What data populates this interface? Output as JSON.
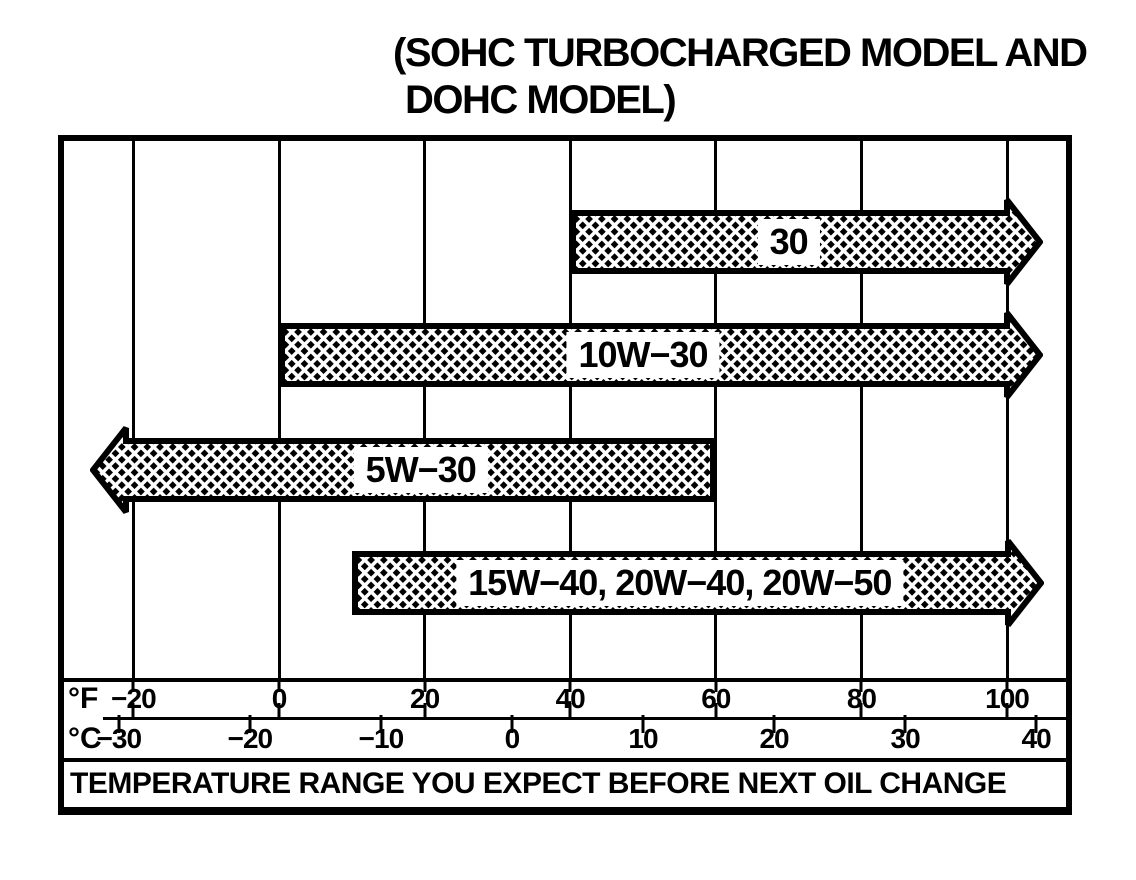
{
  "title": {
    "line1": "(SOHC TURBOCHARGED MODEL AND",
    "line2": "DOHC MODEL)"
  },
  "axis": {
    "fahrenheit_unit": "°F",
    "celsius_unit": "°C"
  },
  "footer_caption": "TEMPERATURE RANGE YOU EXPECT BEFORE NEXT OIL CHANGE",
  "colors": {
    "ink": "#000000",
    "paper": "#ffffff"
  },
  "chart_data": {
    "type": "bar",
    "subtype": "horizontal-temperature-range-arrows",
    "title": "(SOHC TURBOCHARGED MODEL AND DOHC MODEL)",
    "caption": "TEMPERATURE RANGE YOU EXPECT BEFORE NEXT OIL CHANGE",
    "xlabel_primary": "°F",
    "xlabel_secondary": "°C",
    "x_range_f": [
      -30,
      108
    ],
    "grid": true,
    "gridlines_f": [
      -20,
      0,
      20,
      40,
      60,
      80,
      100
    ],
    "f_ticks": [
      {
        "label": "−20",
        "f": -20
      },
      {
        "label": "0",
        "f": 0
      },
      {
        "label": "20",
        "f": 20
      },
      {
        "label": "40",
        "f": 40
      },
      {
        "label": "60",
        "f": 60
      },
      {
        "label": "80",
        "f": 80
      },
      {
        "label": "100",
        "f": 100
      }
    ],
    "c_ticks": [
      {
        "label": "−30",
        "c": -30
      },
      {
        "label": "−20",
        "c": -20
      },
      {
        "label": "−10",
        "c": -10
      },
      {
        "label": "0",
        "c": 0
      },
      {
        "label": "10",
        "c": 10
      },
      {
        "label": "20",
        "c": 20
      },
      {
        "label": "30",
        "c": 30
      },
      {
        "label": "40",
        "c": 40
      }
    ],
    "series": [
      {
        "label": "30",
        "start_f": 40,
        "end_f": 105,
        "direction": "right",
        "extends_beyond_scale": "right"
      },
      {
        "label": "10W−30",
        "start_f": 0,
        "end_f": 105,
        "direction": "right",
        "extends_beyond_scale": "right"
      },
      {
        "label": "5W−30",
        "start_f": -26,
        "end_f": 60,
        "direction": "left",
        "extends_beyond_scale": "left"
      },
      {
        "label": "15W−40, 20W−40, 20W−50",
        "start_f": 10,
        "end_f": 105,
        "direction": "right",
        "extends_beyond_scale": "right"
      }
    ]
  }
}
